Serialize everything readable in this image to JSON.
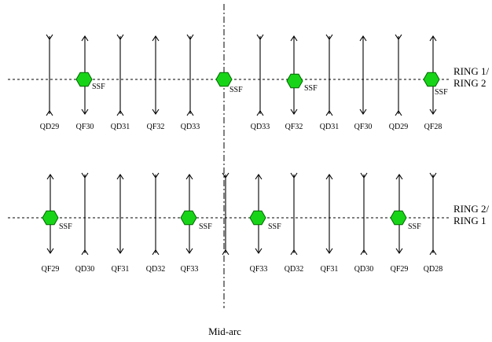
{
  "mid_label": "Mid-arc",
  "ring_labels": {
    "top_line1": "RING 1/",
    "top_line2": "RING 2",
    "bottom_line1": "RING 2/",
    "bottom_line2": "RING 1"
  },
  "sextupole_label": "SSF",
  "top_row": {
    "magnets": [
      {
        "label": "QD29",
        "type": "defocusing"
      },
      {
        "label": "QF30",
        "type": "focusing"
      },
      {
        "label": "QD31",
        "type": "defocusing"
      },
      {
        "label": "QF32",
        "type": "focusing"
      },
      {
        "label": "QD33",
        "type": "defocusing"
      },
      {
        "label": "QD33",
        "type": "defocusing"
      },
      {
        "label": "QF32",
        "type": "focusing"
      },
      {
        "label": "QD31",
        "type": "defocusing"
      },
      {
        "label": "QF30",
        "type": "focusing"
      },
      {
        "label": "QD29",
        "type": "defocusing"
      },
      {
        "label": "QF28",
        "type": "focusing"
      }
    ]
  },
  "bottom_row": {
    "magnets": [
      {
        "label": "QF29",
        "type": "focusing"
      },
      {
        "label": "QD30",
        "type": "defocusing"
      },
      {
        "label": "QF31",
        "type": "focusing"
      },
      {
        "label": "QD32",
        "type": "defocusing"
      },
      {
        "label": "QF33",
        "type": "focusing"
      },
      {
        "label": "",
        "type": "defocusing"
      },
      {
        "label": "QF33",
        "type": "focusing"
      },
      {
        "label": "QD32",
        "type": "defocusing"
      },
      {
        "label": "QF31",
        "type": "focusing"
      },
      {
        "label": "QD30",
        "type": "defocusing"
      },
      {
        "label": "QF29",
        "type": "focusing"
      },
      {
        "label": "QD28",
        "type": "defocusing"
      }
    ]
  },
  "colors": {
    "sextupole_fill": "#18d418",
    "sextupole_stroke": "#006600",
    "line": "#000000"
  }
}
